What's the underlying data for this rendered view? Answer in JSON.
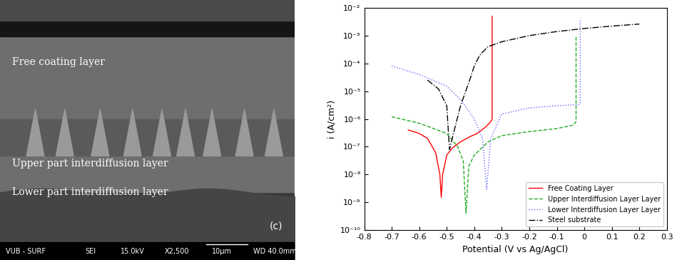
{
  "micrograph": {
    "layer_labels": [
      "Free coating layer",
      "Upper part interdiffusion layer",
      "Lower part interdiffusion layer"
    ],
    "panel_label": "(c)",
    "footer": [
      "VUB - SURF",
      "SEI",
      "15.0kV",
      "X2,500",
      "10μm",
      "WD 40.0mm"
    ]
  },
  "chart_data": {
    "type": "line",
    "x_label": "Potential (V vs Ag/AgCl)",
    "y_label": "i (A/cm²)",
    "log": "y",
    "legend": "lower right",
    "xlim": [
      -0.8,
      0.3
    ],
    "xticks": [
      -0.8,
      -0.7,
      -0.6,
      -0.5,
      -0.4,
      -0.3,
      -0.2,
      -0.1,
      0,
      0.1,
      0.2,
      0.3
    ],
    "ylim": [
      1e-10,
      0.01
    ],
    "yticks": [
      {
        "value": 1e-10,
        "label": "10⁻¹⁰"
      },
      {
        "value": 1e-09,
        "label": "10⁻⁹"
      },
      {
        "value": 1e-08,
        "label": "10⁻⁸"
      },
      {
        "value": 1e-07,
        "label": "10⁻⁷"
      },
      {
        "value": 1e-06,
        "label": "10⁻⁶"
      },
      {
        "value": 1e-05,
        "label": "10⁻⁵"
      },
      {
        "value": 0.0001,
        "label": "10⁻⁴"
      },
      {
        "value": 0.001,
        "label": "10⁻³"
      },
      {
        "value": 0.01,
        "label": "10⁻²"
      }
    ],
    "series": [
      {
        "name": "Free Coating Layer",
        "color": "#ff0000",
        "line_style": "solid",
        "x": [
          -0.64,
          -0.62,
          -0.6,
          -0.57,
          -0.54,
          -0.525,
          -0.52,
          -0.515,
          -0.5,
          -0.48,
          -0.45,
          -0.42,
          -0.39,
          -0.36,
          -0.34,
          -0.335,
          -0.335
        ],
        "values": [
          4e-07,
          3.5e-07,
          3e-07,
          2e-07,
          6e-08,
          1e-08,
          1.5e-09,
          1e-08,
          5e-08,
          9e-08,
          1.5e-07,
          2.2e-07,
          3e-07,
          5e-07,
          8e-07,
          1e-06,
          0.005
        ]
      },
      {
        "name": "Upper Interdiffusion Layer Layer",
        "color": "#22aa22",
        "line_style": "dashed",
        "x": [
          -0.7,
          -0.6,
          -0.5,
          -0.46,
          -0.44,
          -0.43,
          -0.42,
          -0.4,
          -0.35,
          -0.3,
          -0.2,
          -0.1,
          -0.04,
          -0.03,
          -0.03
        ],
        "values": [
          1.2e-06,
          7e-07,
          3e-07,
          1e-07,
          3e-08,
          4e-10,
          2e-08,
          5e-08,
          1.5e-07,
          2.5e-07,
          3.5e-07,
          4.5e-07,
          6e-07,
          8e-07,
          0.001
        ]
      },
      {
        "name": "Lower Interdiffusion Layer Layer",
        "color": "#6666ff",
        "line_style": "dotted",
        "x": [
          -0.7,
          -0.6,
          -0.5,
          -0.45,
          -0.4,
          -0.37,
          -0.355,
          -0.34,
          -0.3,
          -0.2,
          -0.1,
          -0.02,
          -0.015,
          -0.015
        ],
        "values": [
          8e-05,
          4e-05,
          1.5e-05,
          5e-06,
          1e-06,
          2e-07,
          3e-09,
          2e-07,
          1.5e-06,
          2.5e-06,
          3e-06,
          3.3e-06,
          3.5e-06,
          0.004
        ]
      },
      {
        "name": "Steel substrate",
        "color": "#000000",
        "line_style": "dashdot",
        "x": [
          -0.57,
          -0.53,
          -0.5,
          -0.49,
          -0.47,
          -0.45,
          -0.42,
          -0.4,
          -0.38,
          -0.35,
          -0.3,
          -0.2,
          -0.1,
          0.0,
          0.1,
          0.2
        ],
        "values": [
          2.5e-05,
          1.2e-05,
          3e-06,
          8e-08,
          5e-07,
          3e-06,
          2e-05,
          8e-05,
          0.0002,
          0.0004,
          0.0006,
          0.001,
          0.0014,
          0.0018,
          0.0022,
          0.0026
        ]
      }
    ]
  }
}
